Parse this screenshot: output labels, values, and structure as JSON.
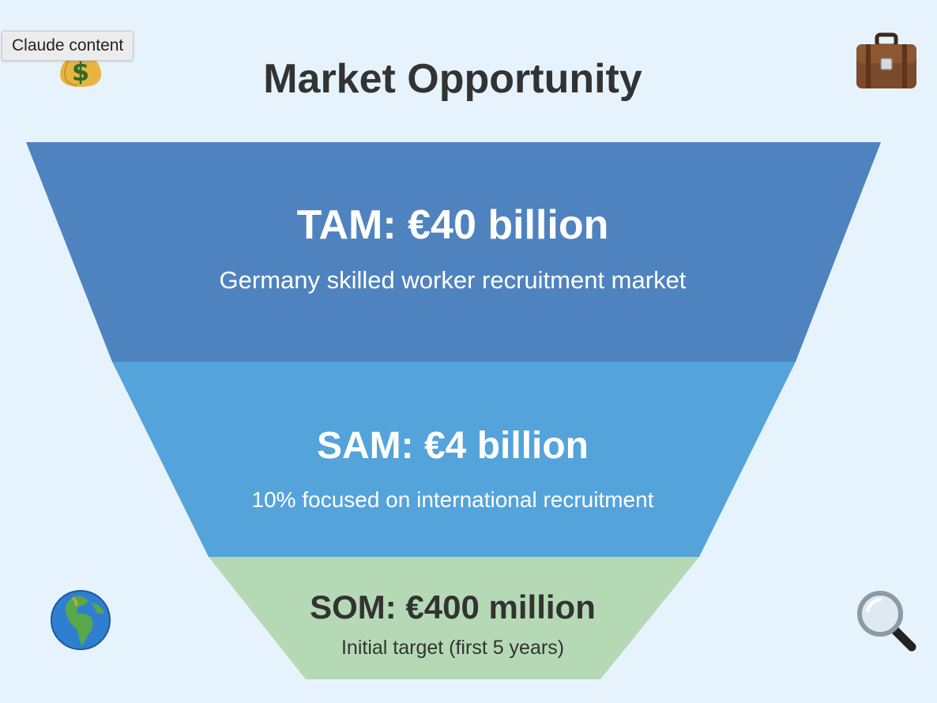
{
  "tooltip": {
    "text": "Claude content"
  },
  "title": "Market Opportunity",
  "icons": {
    "top_left": "money-bag-icon",
    "top_right": "briefcase-icon",
    "bottom_left": "globe-icon",
    "bottom_right": "magnifying-glass-icon"
  },
  "colors": {
    "background": "#e6f3fd",
    "tam": "#4f83c0",
    "sam": "#54a3db",
    "som": "#b5d9b4",
    "title": "#333333"
  },
  "funnel": {
    "tam": {
      "heading": "TAM: €40 billion",
      "description": "Germany skilled worker recruitment market"
    },
    "sam": {
      "heading": "SAM: €4 billion",
      "description": "10% focused on international recruitment"
    },
    "som": {
      "heading": "SOM: €400 million",
      "description": "Initial target (first 5 years)"
    }
  }
}
